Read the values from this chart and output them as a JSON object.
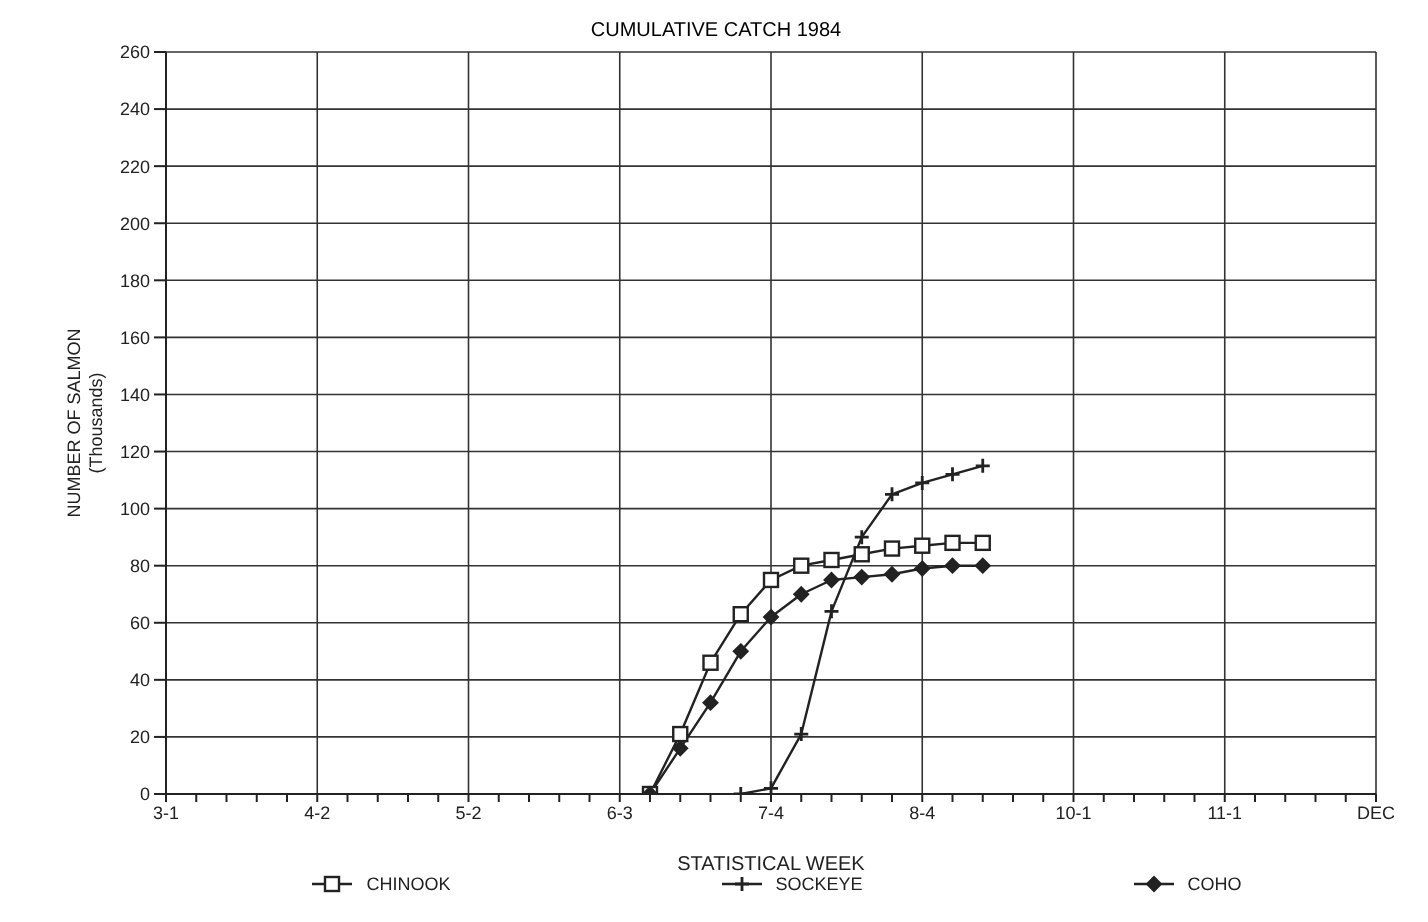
{
  "chart_data": {
    "type": "line",
    "title": "CUMULATIVE CATCH 1984",
    "xlabel": "STATISTICAL WEEK",
    "ylabel": "NUMBER OF SALMON\n(Thousands)",
    "categories": [
      "3-1",
      null,
      null,
      null,
      null,
      "4-2",
      null,
      null,
      null,
      null,
      "5-2",
      null,
      null,
      null,
      null,
      "6-3",
      null,
      null,
      null,
      null,
      "7-4",
      null,
      null,
      null,
      null,
      "8-4",
      null,
      null,
      null,
      null,
      "10-1",
      null,
      null,
      null,
      null,
      "11-1",
      null,
      null,
      null,
      null,
      "DEC"
    ],
    "ylim": [
      0,
      260
    ],
    "yticks": [
      0,
      20,
      40,
      60,
      80,
      100,
      120,
      140,
      160,
      180,
      200,
      220,
      240,
      260
    ],
    "grid": true,
    "legend": "bottom",
    "line_style": "solid",
    "series": [
      {
        "name": "CHINOOK",
        "color": "#222222",
        "marker": "square",
        "values": [
          null,
          null,
          null,
          null,
          null,
          null,
          null,
          null,
          null,
          null,
          null,
          null,
          null,
          null,
          null,
          null,
          0,
          21,
          46,
          63,
          75,
          80,
          82,
          84,
          86,
          87,
          88,
          88,
          null,
          null,
          null,
          null,
          null,
          null,
          null,
          null,
          null,
          null,
          null,
          null,
          null
        ]
      },
      {
        "name": "SOCKEYE",
        "color": "#222222",
        "marker": "cross",
        "values": [
          null,
          null,
          null,
          null,
          null,
          null,
          null,
          null,
          null,
          null,
          null,
          null,
          null,
          null,
          null,
          null,
          null,
          null,
          null,
          0,
          2,
          21,
          64,
          90,
          105,
          109,
          112,
          115,
          null,
          null,
          null,
          null,
          null,
          null,
          null,
          null,
          null,
          null,
          null,
          null,
          null
        ]
      },
      {
        "name": "COHO",
        "color": "#222222",
        "marker": "diamond",
        "values": [
          null,
          null,
          null,
          null,
          null,
          null,
          null,
          null,
          null,
          null,
          null,
          null,
          null,
          null,
          null,
          null,
          0,
          16,
          32,
          50,
          62,
          70,
          75,
          76,
          77,
          79,
          80,
          80,
          null,
          null,
          null,
          null,
          null,
          null,
          null,
          null,
          null,
          null,
          null,
          null,
          null
        ]
      }
    ]
  }
}
